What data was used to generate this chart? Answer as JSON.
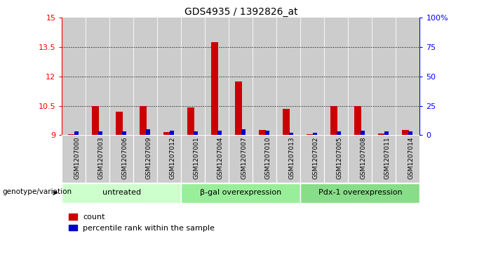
{
  "title": "GDS4935 / 1392826_at",
  "samples": [
    "GSM1207000",
    "GSM1207003",
    "GSM1207006",
    "GSM1207009",
    "GSM1207012",
    "GSM1207001",
    "GSM1207004",
    "GSM1207007",
    "GSM1207010",
    "GSM1207013",
    "GSM1207002",
    "GSM1207005",
    "GSM1207008",
    "GSM1207011",
    "GSM1207014"
  ],
  "count_values": [
    9.05,
    10.5,
    10.2,
    10.5,
    9.15,
    10.4,
    13.75,
    11.75,
    9.25,
    10.35,
    9.05,
    10.5,
    10.5,
    9.08,
    9.25
  ],
  "percentile_values": [
    3,
    3,
    3,
    5,
    4,
    3,
    4,
    5,
    4,
    2,
    2,
    3,
    4,
    3,
    3
  ],
  "groups": [
    {
      "label": "untreated",
      "start": 0,
      "end": 5,
      "color": "#ccffcc"
    },
    {
      "label": "β-gal overexpression",
      "start": 5,
      "end": 10,
      "color": "#99ee99"
    },
    {
      "label": "Pdx-1 overexpression",
      "start": 10,
      "end": 15,
      "color": "#88dd88"
    }
  ],
  "ylim_left": [
    9,
    15
  ],
  "ylim_right": [
    0,
    100
  ],
  "yticks_left": [
    9,
    10.5,
    12,
    13.5,
    15
  ],
  "ytick_labels_left": [
    "9",
    "10.5",
    "12",
    "13.5",
    "15"
  ],
  "yticks_right": [
    0,
    25,
    50,
    75,
    100
  ],
  "ytick_labels_right": [
    "0",
    "25",
    "50",
    "75",
    "100%"
  ],
  "count_color": "#cc0000",
  "percentile_color": "#0000cc",
  "bg_color_sample": "#cccccc",
  "legend_count": "count",
  "legend_percentile": "percentile rank within the sample",
  "genotype_label": "genotype/variation",
  "baseline": 9,
  "bar_width": 0.28,
  "pct_bar_width": 0.18
}
